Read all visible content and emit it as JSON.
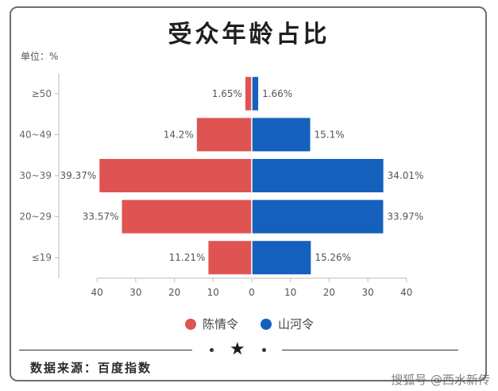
{
  "header": {
    "title": "受众年龄占比",
    "unit": "单位：%"
  },
  "chart_data": {
    "type": "bar",
    "orientation": "horizontal-butterfly",
    "categories": [
      "≤19",
      "20~29",
      "30~39",
      "40~49",
      "≥50"
    ],
    "series": [
      {
        "name": "陈情令",
        "values": [
          11.21,
          33.57,
          39.37,
          14.2,
          1.65
        ],
        "labels": [
          "11.21%",
          "33.57%",
          "39.37%",
          "14.2%",
          "1.65%"
        ],
        "color": "#e05353",
        "side": "left"
      },
      {
        "name": "山河令",
        "values": [
          15.26,
          33.97,
          34.01,
          15.1,
          1.66
        ],
        "labels": [
          "15.26%",
          "33.97%",
          "34.01%",
          "15.1%",
          "1.66%"
        ],
        "color": "#1560bd",
        "side": "right"
      }
    ],
    "xticks": [
      "40",
      "30",
      "20",
      "10",
      "0",
      "10",
      "20",
      "30",
      "40"
    ],
    "xlim": [
      -40,
      40
    ],
    "legend_position": "bottom-center",
    "grid": false
  },
  "footer": {
    "source": "数据来源：百度指数",
    "watermark": "搜狐号 @西水新传"
  },
  "colors": {
    "left": "#e05353",
    "right": "#1560bd",
    "border": "#6e6e6e"
  },
  "icons": {
    "ornament": "star-icon"
  }
}
